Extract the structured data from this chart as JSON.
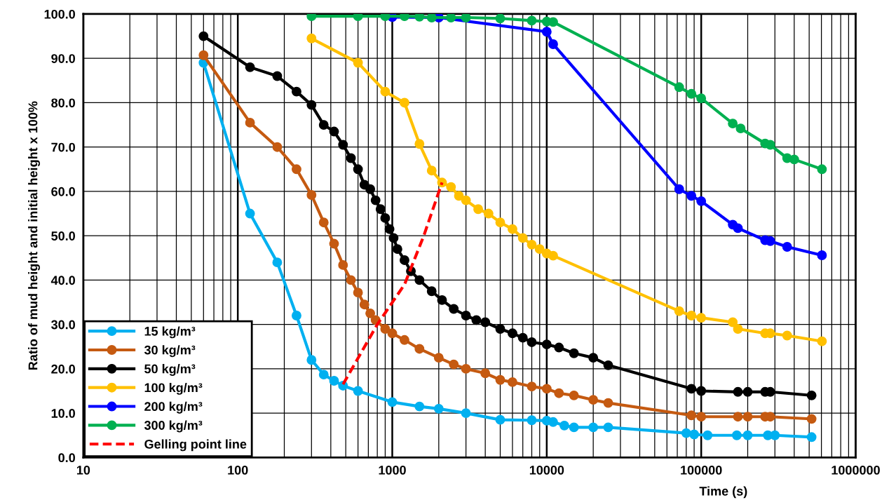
{
  "chart_data": {
    "type": "line",
    "xlabel": "Time (s)",
    "ylabel": "Ratio of mud height and initial height x 100%",
    "log": "x",
    "grid": true,
    "legend": "bottom left",
    "marker": "circle",
    "xlim": [
      10,
      1000000
    ],
    "xticks": [
      10,
      100,
      1000,
      10000,
      100000,
      1000000
    ],
    "ylim": [
      0,
      100
    ],
    "yticks": [
      {
        "value": 0,
        "label": "0.0"
      },
      {
        "value": 10,
        "label": "10.0"
      },
      {
        "value": 20,
        "label": "20.0"
      },
      {
        "value": 30,
        "label": "30.0"
      },
      {
        "value": 40,
        "label": "40.0"
      },
      {
        "value": 50,
        "label": "50.0"
      },
      {
        "value": 60,
        "label": "60.0"
      },
      {
        "value": 70,
        "label": "70.0"
      },
      {
        "value": 80,
        "label": "80.0"
      },
      {
        "value": 90,
        "label": "90.0"
      },
      {
        "value": 100,
        "label": "100.0"
      }
    ],
    "series": [
      {
        "name": "15 kg/m³",
        "color": "#00b0f0",
        "x": [
          60,
          120,
          180,
          240,
          300,
          360,
          420,
          480,
          600,
          1000,
          1500,
          2000,
          3000,
          5000,
          8000,
          10000,
          11000,
          13000,
          15000,
          20000,
          25000,
          80000,
          90000,
          110000,
          170000,
          200000,
          270000,
          300000,
          518400
        ],
        "values": [
          89,
          55,
          44,
          32,
          22,
          18.7,
          17.3,
          16.2,
          15.0,
          12.5,
          11.5,
          11,
          10,
          8.5,
          8.4,
          8.3,
          8.0,
          7.2,
          6.8,
          6.8,
          6.8,
          5.5,
          5.2,
          5.0,
          5.0,
          5.0,
          5.0,
          5.0,
          4.6
        ]
      },
      {
        "name": "30 kg/m³",
        "color": "#c55a11",
        "x": [
          60,
          120,
          180,
          240,
          300,
          360,
          420,
          480,
          540,
          600,
          660,
          720,
          780,
          900,
          1000,
          1200,
          1500,
          2000,
          2500,
          3000,
          4000,
          5000,
          6000,
          8000,
          10000,
          12000,
          15000,
          20000,
          25000,
          86400,
          100000,
          172800,
          200000,
          259200,
          280000,
          518400
        ],
        "values": [
          90.7,
          75.5,
          70,
          65,
          59.2,
          53,
          48.2,
          43.4,
          40,
          37.2,
          34.5,
          32.5,
          31,
          29,
          28,
          26.5,
          24.5,
          22.5,
          21,
          20,
          19,
          17.5,
          17,
          16,
          15.5,
          14.5,
          14,
          13,
          12.3,
          9.5,
          9.2,
          9.2,
          9.2,
          9.2,
          9.2,
          8.7
        ]
      },
      {
        "name": "50 kg/m³",
        "color": "#000000",
        "x": [
          60,
          120,
          180,
          240,
          300,
          360,
          420,
          480,
          540,
          600,
          660,
          720,
          780,
          840,
          900,
          960,
          1020,
          1080,
          1200,
          1320,
          1500,
          1800,
          2100,
          2500,
          3000,
          3500,
          4000,
          5000,
          6000,
          7000,
          8000,
          10000,
          12000,
          15000,
          20000,
          25000,
          86400,
          100000,
          172800,
          200000,
          259200,
          280000,
          518400
        ],
        "values": [
          95,
          88,
          86,
          82.5,
          79.5,
          75,
          73.5,
          70.5,
          67.5,
          65,
          61.5,
          60.5,
          58,
          56,
          54,
          51.5,
          49.5,
          47,
          44.5,
          42,
          40,
          37.5,
          35.5,
          33.5,
          32,
          31,
          30.5,
          29,
          28,
          27,
          26,
          25.5,
          24.8,
          23.5,
          22.5,
          20.8,
          15.5,
          15,
          14.8,
          14.8,
          14.8,
          14.8,
          14
        ]
      },
      {
        "name": "100 kg/m³",
        "color": "#ffc000",
        "x": [
          300,
          600,
          900,
          1200,
          1500,
          1800,
          2100,
          2400,
          2700,
          3000,
          3600,
          4200,
          5000,
          6000,
          7000,
          8000,
          9000,
          10000,
          11000,
          72000,
          86400,
          100000,
          160000,
          172800,
          259200,
          280000,
          360000,
          604800
        ],
        "values": [
          94.5,
          89,
          82.5,
          80,
          70.7,
          64.7,
          62,
          61,
          59,
          58,
          56,
          55,
          53,
          51.5,
          49.5,
          48,
          47,
          46,
          45.5,
          33,
          32,
          31.5,
          30.5,
          29,
          28,
          28,
          27.5,
          26.2
        ]
      },
      {
        "name": "200 kg/m³",
        "color": "#0000ff",
        "x": [
          1000,
          2000,
          10000,
          11000,
          72000,
          86400,
          100000,
          160000,
          172800,
          259200,
          280000,
          360000,
          604800
        ],
        "values": [
          99.3,
          99.2,
          96,
          93.2,
          60.5,
          59,
          57.8,
          52.5,
          51.7,
          49,
          48.8,
          47.5,
          45.6
        ]
      },
      {
        "name": "300 kg/m³",
        "color": "#00b050",
        "x": [
          300,
          600,
          900,
          1200,
          1500,
          1800,
          2400,
          3000,
          5000,
          8000,
          10000,
          11000,
          72000,
          86400,
          100000,
          160000,
          180000,
          259200,
          280000,
          360000,
          400000,
          604800
        ],
        "values": [
          99.5,
          99.5,
          99.5,
          99.5,
          99.4,
          99.2,
          99.2,
          99.2,
          99,
          98.5,
          98.3,
          98.2,
          83.5,
          82,
          81,
          75.3,
          74.2,
          70.8,
          70.5,
          67.5,
          67.2,
          65
        ]
      },
      {
        "name": "Gelling point line",
        "color": "#ff0000",
        "marker": "none",
        "line_style": "dashed",
        "x": [
          480,
          800,
          1200,
          1600,
          2100
        ],
        "values": [
          16.5,
          30,
          39,
          50,
          62
        ]
      }
    ]
  }
}
